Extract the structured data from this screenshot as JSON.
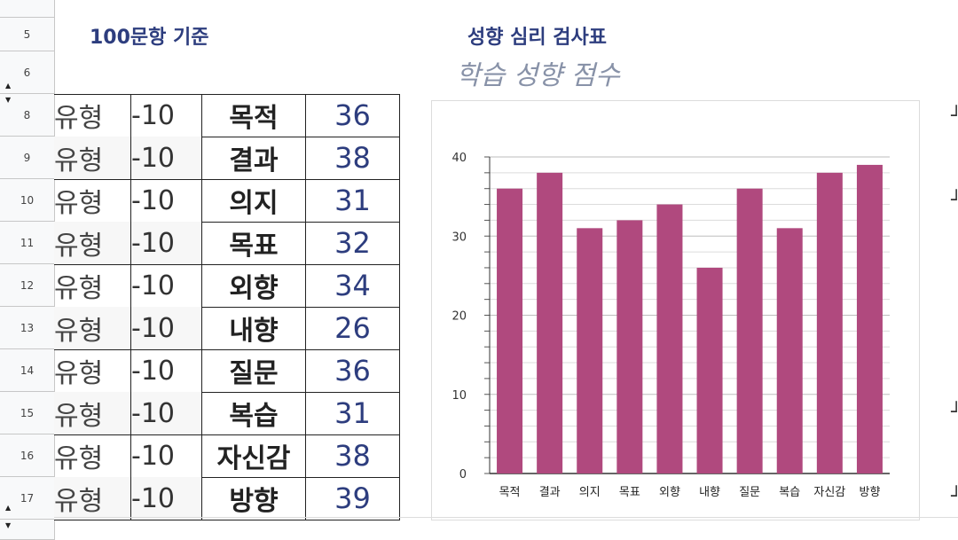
{
  "row_headers": [
    "5",
    "6",
    "8",
    "9",
    "10",
    "11",
    "12",
    "13",
    "14",
    "15",
    "16",
    "17"
  ],
  "heading_left": "100문항 기준",
  "heading_right": "성향 심리 검사표",
  "subheading": "학습 성향 점수",
  "table": {
    "rows": [
      {
        "type": "유형",
        "range": "-10",
        "item": "목적",
        "score": "36"
      },
      {
        "type": "유형",
        "range": "-10",
        "item": "결과",
        "score": "38"
      },
      {
        "type": "유형",
        "range": "-10",
        "item": "의지",
        "score": "31"
      },
      {
        "type": "유형",
        "range": "-10",
        "item": "목표",
        "score": "32"
      },
      {
        "type": "유형",
        "range": "-10",
        "item": "외향",
        "score": "34"
      },
      {
        "type": "유형",
        "range": "-10",
        "item": "내향",
        "score": "26"
      },
      {
        "type": "유형",
        "range": "-10",
        "item": "질문",
        "score": "36"
      },
      {
        "type": "유형",
        "range": "-10",
        "item": "복습",
        "score": "31"
      },
      {
        "type": "유형",
        "range": "-10",
        "item": "자신감",
        "score": "38"
      },
      {
        "type": "유형",
        "range": "-10",
        "item": "방향",
        "score": "39"
      }
    ]
  },
  "colors": {
    "bar": "#b0497e",
    "heading": "#2d3d7e",
    "subheading": "#8892a8",
    "score": "#2d3d7e"
  },
  "chart_data": {
    "type": "bar",
    "categories": [
      "목적",
      "결과",
      "의지",
      "목표",
      "외향",
      "내향",
      "질문",
      "복습",
      "자신감",
      "방향"
    ],
    "values": [
      36,
      38,
      31,
      32,
      34,
      26,
      36,
      31,
      38,
      39
    ],
    "ylim": [
      0,
      40
    ],
    "yticks": [
      0,
      10,
      20,
      30,
      40
    ],
    "grid": true,
    "legend": "none"
  }
}
